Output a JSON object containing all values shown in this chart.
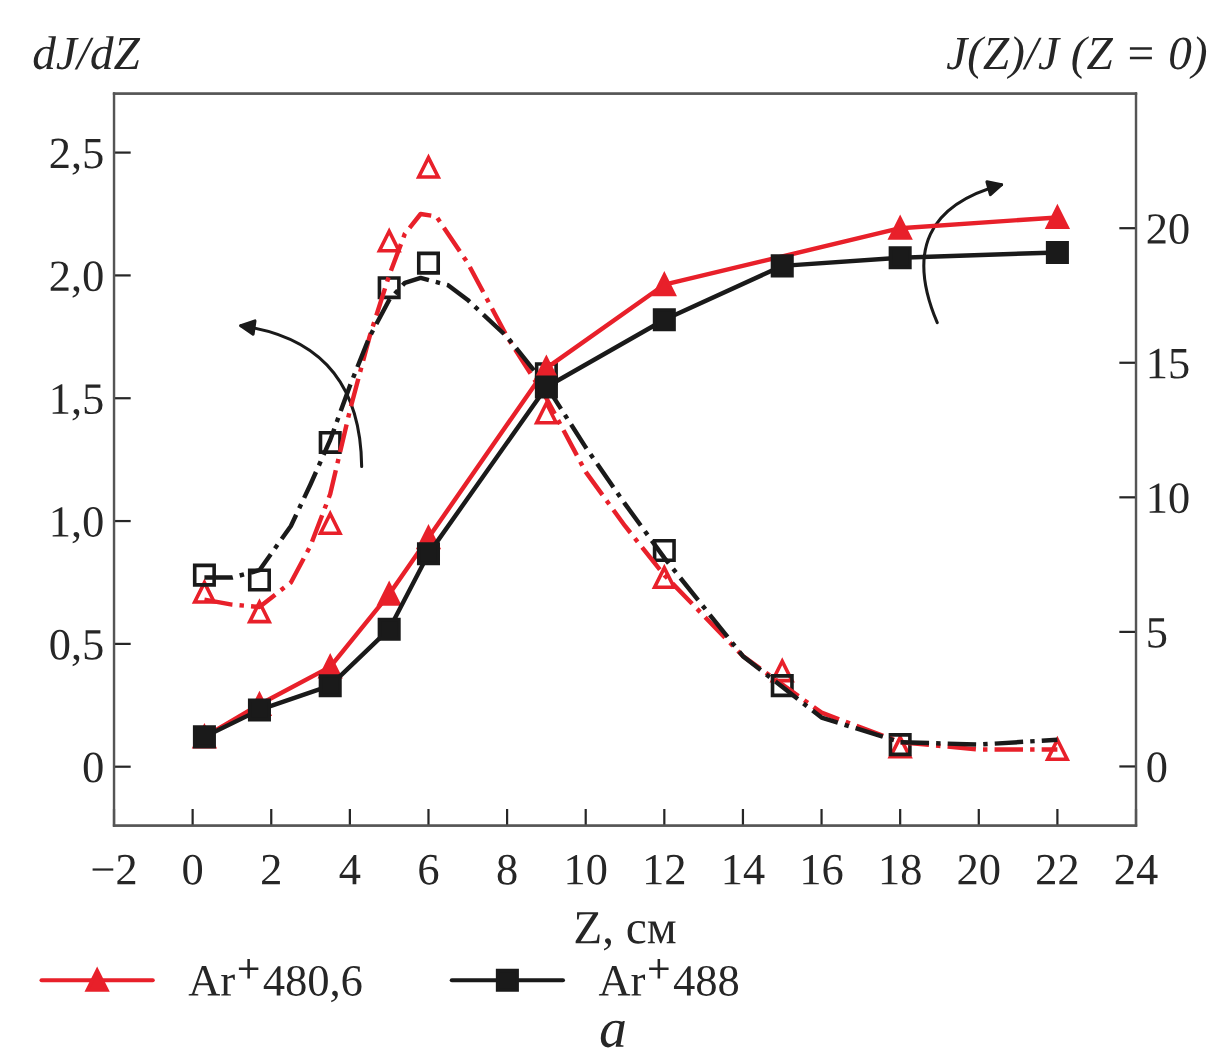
{
  "chart_data": {
    "type": "line",
    "ylabel": "dJ/dZ",
    "y2label": "J(Z)/J (Z = 0)",
    "xlabel": "Z, см",
    "xlim": [
      -2,
      24
    ],
    "xticks": [
      {
        "value": -2,
        "label": "−2"
      },
      0,
      2,
      4,
      6,
      8,
      10,
      12,
      14,
      16,
      18,
      20,
      22,
      24
    ],
    "ylim": [
      -0.24,
      2.74
    ],
    "yticks": [
      0,
      {
        "value": 0.5,
        "label": "0,5"
      },
      {
        "value": 1.0,
        "label": "1,0"
      },
      {
        "value": 1.5,
        "label": "1,5"
      },
      {
        "value": 2.0,
        "label": "2,0"
      },
      {
        "value": 2.5,
        "label": "2,5"
      }
    ],
    "y2lim": [
      -2.2,
      25
    ],
    "y2ticks": [
      0,
      5,
      10,
      15,
      20
    ],
    "legend": "bottom left",
    "grid": false,
    "annotations": [
      "a"
    ],
    "series": [
      {
        "name": "Ar$^{+}$480,6",
        "axis": "y2",
        "color": "#e8202a",
        "marker": "triangle",
        "line_style": "solid",
        "x": [
          0.3,
          1.7,
          3.5,
          5,
          6,
          9,
          12,
          18,
          22
        ],
        "values": [
          1.1,
          2.3,
          3.7,
          6.4,
          8.5,
          14.8,
          17.9,
          20.0,
          20.4
        ]
      },
      {
        "name": "Ar$^{+}$488",
        "axis": "y2",
        "color": "#1a1a1a",
        "marker": "square",
        "line_style": "solid",
        "x": [
          0.3,
          1.7,
          3.5,
          5,
          6,
          9,
          12,
          15,
          18,
          22
        ],
        "values": [
          1.1,
          2.1,
          3.0,
          5.1,
          7.9,
          14.1,
          16.6,
          18.6,
          18.9,
          19.1
        ]
      },
      {
        "type": "scatter",
        "axis": "y",
        "color": "#e8202a",
        "marker": "triangle_open",
        "x": [
          0.3,
          1.7,
          3.5,
          5,
          6,
          9,
          12,
          15,
          18,
          22
        ],
        "values": [
          0.71,
          0.63,
          0.99,
          2.14,
          2.44,
          1.44,
          0.77,
          0.39,
          0.08,
          0.07
        ]
      },
      {
        "type": "scatter",
        "axis": "y",
        "color": "#1a1a1a",
        "marker": "square_open",
        "x": [
          0.3,
          1.7,
          3.5,
          5,
          6,
          9,
          12,
          15,
          18
        ],
        "values": [
          0.78,
          0.76,
          1.32,
          1.95,
          2.05,
          1.6,
          0.88,
          0.33,
          0.09
        ]
      },
      {
        "axis": "y",
        "color": "#e8202a",
        "marker": "none",
        "line_style": "dashdot",
        "x": [
          0.3,
          1.0,
          1.7,
          2.5,
          3.0,
          3.5,
          4.0,
          4.5,
          5.0,
          5.4,
          5.8,
          6.2,
          7.0,
          8.0,
          9.0,
          10.0,
          11.0,
          12.0,
          14.0,
          16.0,
          18.0,
          20.0,
          22.0
        ],
        "values": [
          0.68,
          0.66,
          0.65,
          0.75,
          0.9,
          1.11,
          1.45,
          1.75,
          2.0,
          2.17,
          2.25,
          2.24,
          2.05,
          1.75,
          1.5,
          1.2,
          0.98,
          0.78,
          0.45,
          0.22,
          0.1,
          0.07,
          0.07
        ]
      },
      {
        "axis": "y",
        "color": "#1a1a1a",
        "marker": "none",
        "line_style": "dashdot",
        "x": [
          0.3,
          1.0,
          1.7,
          2.5,
          3.0,
          3.5,
          4.0,
          4.5,
          5.0,
          5.4,
          5.8,
          6.5,
          7.0,
          8.0,
          9.0,
          10.0,
          11.0,
          12.0,
          14.0,
          16.0,
          18.0,
          20.0,
          22.0
        ],
        "values": [
          0.77,
          0.77,
          0.8,
          0.98,
          1.15,
          1.33,
          1.55,
          1.75,
          1.9,
          1.97,
          1.99,
          1.96,
          1.9,
          1.75,
          1.55,
          1.3,
          1.07,
          0.85,
          0.45,
          0.2,
          0.1,
          0.09,
          0.11
        ]
      }
    ]
  }
}
